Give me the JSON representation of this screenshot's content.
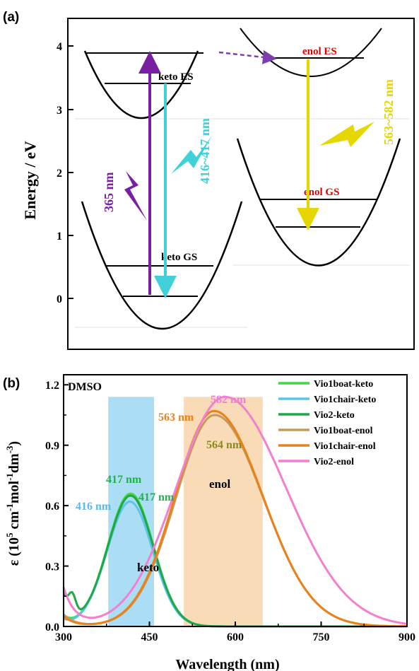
{
  "panel_a": {
    "label": "(a)",
    "ylabel": "Energy / eV",
    "yticks": [
      "0",
      "1",
      "2",
      "3",
      "4"
    ],
    "keto_es": "keto ES",
    "keto_gs": "keto GS",
    "enol_es": "enol ES",
    "enol_gs": "enol GS",
    "abs_label": "365 nm",
    "keto_em_label": "416~417 nm",
    "enol_em_label": "563~582 nm",
    "colors": {
      "absorption": "#7B1FA2",
      "keto_emission": "#40D0D8",
      "enol_emission": "#E6D700",
      "proton_transfer": "#7B3FB0",
      "state_label": "#E00000"
    }
  },
  "panel_b": {
    "label": "(b)",
    "solvent": "DMSO",
    "keto_band": "keto",
    "enol_band": "enol",
    "ylabel_main": "ε (10",
    "ylabel_sup1": "5",
    "ylabel_mid1": " cm",
    "ylabel_sup2": "-1",
    "ylabel_mid2": "mol",
    "ylabel_sup3": "-1",
    "ylabel_mid3": "dm",
    "ylabel_sup4": "-3",
    "ylabel_end": ")",
    "peak_labels": [
      {
        "text": "417 nm",
        "color": "#22B14C"
      },
      {
        "text": "416 nm",
        "color": "#5BB8E8"
      },
      {
        "text": "417 nm",
        "color": "#22B14C"
      },
      {
        "text": "563 nm",
        "color": "#E8831A"
      },
      {
        "text": "564 nm",
        "color": "#8B8B1A"
      },
      {
        "text": "582 nm",
        "color": "#F07CE0"
      }
    ]
  },
  "chart_data": {
    "type": "line",
    "xlabel": "Wavelength (nm)",
    "ylabel": "ε (10^5 cm^-1 mol^-1 dm^-3)",
    "xlim": [
      300,
      900
    ],
    "ylim": [
      0,
      1.25
    ],
    "xticks": [
      300,
      450,
      600,
      750,
      900
    ],
    "yticks": [
      0.0,
      0.3,
      0.6,
      0.9,
      1.2
    ],
    "ytick_labels": [
      "0.0",
      "0.3",
      "0.6",
      "0.9",
      "1.2"
    ],
    "xtick_labels": [
      "300",
      "450",
      "600",
      "750",
      "900"
    ],
    "legend_position": "top-right",
    "highlight_bands": [
      {
        "label": "keto",
        "x": [
          378,
          458
        ],
        "color": "#8FD3F0"
      },
      {
        "label": "enol",
        "x": [
          510,
          648
        ],
        "color": "#F8CFA0"
      }
    ],
    "series": [
      {
        "name": "Vio1boat-keto",
        "color": "#3DDB3D",
        "peak_x": 417,
        "peak_y": 0.66,
        "width": 40,
        "start": 0.05
      },
      {
        "name": "Vio1chair-keto",
        "color": "#5BC4E8",
        "peak_x": 416,
        "peak_y": 0.62,
        "width": 40,
        "start": 0.03
      },
      {
        "name": "Vio2-keto",
        "color": "#1FA84A",
        "peak_x": 417,
        "peak_y": 0.65,
        "width": 40,
        "start": 0.16,
        "shoulder": true
      },
      {
        "name": "Vio1boat-enol",
        "color": "#C89A5A",
        "peak_x": 564,
        "peak_y": 1.05,
        "width": 68,
        "start": 0.06
      },
      {
        "name": "Vio1chair-enol",
        "color": "#E8821A",
        "peak_x": 563,
        "peak_y": 1.07,
        "width": 68,
        "start": 0.05
      },
      {
        "name": "Vio2-enol",
        "color": "#F27FCF",
        "peak_x": 582,
        "peak_y": 1.14,
        "width": 85,
        "start": 0.19
      }
    ]
  }
}
